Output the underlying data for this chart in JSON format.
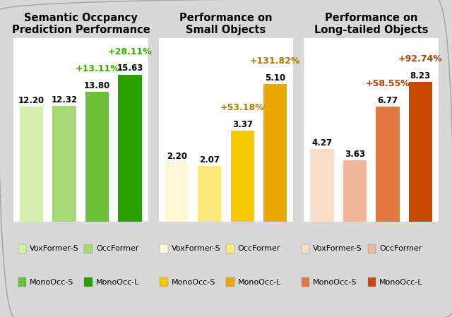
{
  "panels": [
    {
      "title": "Semantic Occpancy\nPrediction Performance",
      "bars": [
        {
          "label": "VoxFormer-S",
          "value": 12.2,
          "color": "#d4eeae"
        },
        {
          "label": "OccFormer",
          "value": 12.32,
          "color": "#a8d878"
        },
        {
          "label": "MonoOcc-S",
          "value": 13.8,
          "color": "#6cc038"
        },
        {
          "label": "MonoOcc-L",
          "value": 15.63,
          "color": "#28a000"
        }
      ],
      "annotations": [
        {
          "text": "+13.11%",
          "color": "#3aaa00",
          "bar_idx": 2
        },
        {
          "text": "+28.11%",
          "color": "#3aaa00",
          "bar_idx": 3
        }
      ],
      "ylim": [
        0,
        19.5
      ],
      "value_color": "black"
    },
    {
      "title": "Performance on\nSmall Objects",
      "bars": [
        {
          "label": "VoxFormer-S",
          "value": 2.2,
          "color": "#fef8d8"
        },
        {
          "label": "OccFormer",
          "value": 2.07,
          "color": "#fce878"
        },
        {
          "label": "MonoOcc-S",
          "value": 3.37,
          "color": "#f5c800"
        },
        {
          "label": "MonoOcc-L",
          "value": 5.1,
          "color": "#e8a800"
        }
      ],
      "annotations": [
        {
          "text": "+53.18%",
          "color": "#b07800",
          "bar_idx": 2
        },
        {
          "text": "+131.82%",
          "color": "#b07800",
          "bar_idx": 3
        }
      ],
      "ylim": [
        0,
        6.8
      ],
      "value_color": "black"
    },
    {
      "title": "Performance on\nLong-tailed Objects",
      "bars": [
        {
          "label": "VoxFormer-S",
          "value": 4.27,
          "color": "#f8ddc8"
        },
        {
          "label": "OccFormer",
          "value": 3.63,
          "color": "#f0b898"
        },
        {
          "label": "MonoOcc-S",
          "value": 6.77,
          "color": "#e07840"
        },
        {
          "label": "MonoOcc-L",
          "value": 8.23,
          "color": "#c84800"
        }
      ],
      "annotations": [
        {
          "text": "+58.55%",
          "color": "#b04000",
          "bar_idx": 2
        },
        {
          "text": "+92.74%",
          "color": "#b04000",
          "bar_idx": 3
        }
      ],
      "ylim": [
        0,
        10.8
      ],
      "value_color": "black"
    }
  ],
  "legend_groups": [
    [
      {
        "label": "VoxFormer-S",
        "color": "#d4eeae"
      },
      {
        "label": "OccFormer",
        "color": "#a8d878"
      },
      {
        "label": "MonoOcc-S",
        "color": "#6cc038"
      },
      {
        "label": "MonoOcc-L",
        "color": "#28a000"
      }
    ],
    [
      {
        "label": "VoxFormer-S",
        "color": "#fef8d8"
      },
      {
        "label": "OccFormer",
        "color": "#fce878"
      },
      {
        "label": "MonoOcc-S",
        "color": "#f5c800"
      },
      {
        "label": "MonoOcc-L",
        "color": "#e8a800"
      }
    ],
    [
      {
        "label": "VoxFormer-S",
        "color": "#f8ddc8"
      },
      {
        "label": "OccFormer",
        "color": "#f0b898"
      },
      {
        "label": "MonoOcc-S",
        "color": "#e07840"
      },
      {
        "label": "MonoOcc-L",
        "color": "#c84800"
      }
    ]
  ],
  "background_color": "#d8d8d8",
  "panel_bg": "#ffffff",
  "bar_width": 0.72,
  "title_fontsize": 10.5,
  "value_fontsize": 8.5,
  "annot_fontsize": 9.0,
  "legend_fontsize": 8.0
}
